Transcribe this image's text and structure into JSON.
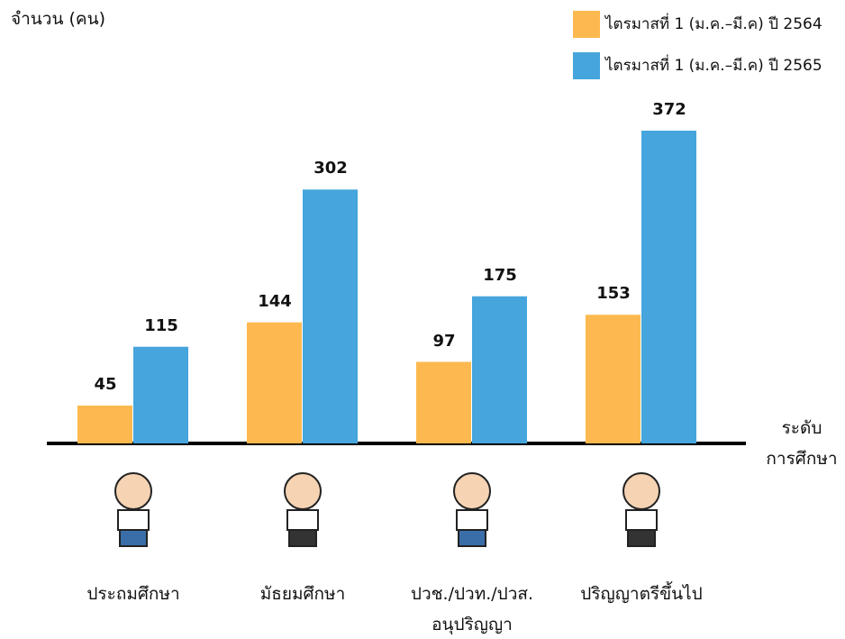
{
  "chart_data": {
    "type": "bar",
    "y_label": "จำนวน (คน)",
    "x_label": "ระดับ\nการศึกษา",
    "categories": [
      "ประถมศึกษา",
      "มัธยมศึกษา",
      "ปวช./ปวท./ปวส.\nอนุปริญญา",
      "ปริญญาตรีขึ้นไป"
    ],
    "series": [
      {
        "name": "ไตรมาสที่ 1 (ม.ค.–มี.ค) ปี 2564",
        "color": "#fdb94f",
        "values": [
          45,
          144,
          97,
          153
        ]
      },
      {
        "name": "ไตรมาสที่ 1 (ม.ค.–มี.ค) ปี 2565",
        "color": "#45a5dc",
        "values": [
          115,
          302,
          175,
          372
        ]
      }
    ],
    "legend": "top-right"
  }
}
